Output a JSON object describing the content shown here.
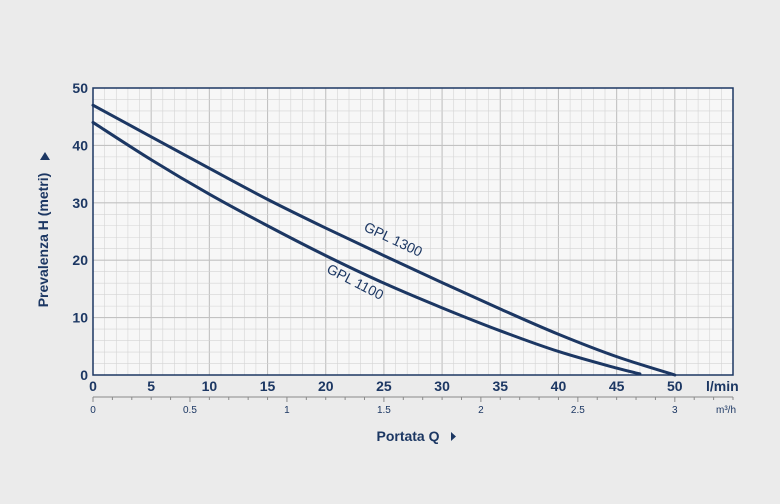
{
  "chart_data": {
    "type": "line",
    "ylabel": "Prevalenza H (metri)",
    "xlabel": "Portata Q",
    "x_unit": "l/min",
    "x2_unit": "m³/h",
    "xlim": [
      0,
      55
    ],
    "ylim": [
      0,
      50
    ],
    "x_ticks": [
      0,
      5,
      10,
      15,
      20,
      25,
      30,
      35,
      40,
      45,
      50
    ],
    "y_ticks": [
      0,
      10,
      20,
      30,
      40,
      50
    ],
    "x2_ticks": [
      {
        "label": "0",
        "lmin": 0
      },
      {
        "label": "0.5",
        "lmin": 8.333
      },
      {
        "label": "1",
        "lmin": 16.667
      },
      {
        "label": "1.5",
        "lmin": 25
      },
      {
        "label": "2",
        "lmin": 33.333
      },
      {
        "label": "2.5",
        "lmin": 41.667
      },
      {
        "label": "3",
        "lmin": 50
      }
    ],
    "grid": true,
    "series": [
      {
        "name": "GPL 1300",
        "color": "#1c3763",
        "x": [
          0,
          5,
          10,
          15,
          20,
          25,
          30,
          35,
          40,
          45,
          50
        ],
        "y": [
          47,
          41.5,
          36,
          30.6,
          25.6,
          20.8,
          16.1,
          11.5,
          7.1,
          3.2,
          0
        ]
      },
      {
        "name": "GPL 1100",
        "color": "#1c3763",
        "x": [
          0,
          5,
          10,
          15,
          20,
          25,
          30,
          35,
          40,
          45,
          47
        ],
        "y": [
          44,
          37.5,
          31.5,
          26,
          20.8,
          16,
          11.7,
          7.7,
          4.1,
          1.2,
          0.2
        ]
      }
    ],
    "colors": {
      "curve": "#1c3763",
      "axis_text": "#1c3763",
      "grid_minor": "#d4d4d4",
      "grid_major": "#c2c2c2",
      "plot_bg": "#f7f7f7"
    }
  }
}
